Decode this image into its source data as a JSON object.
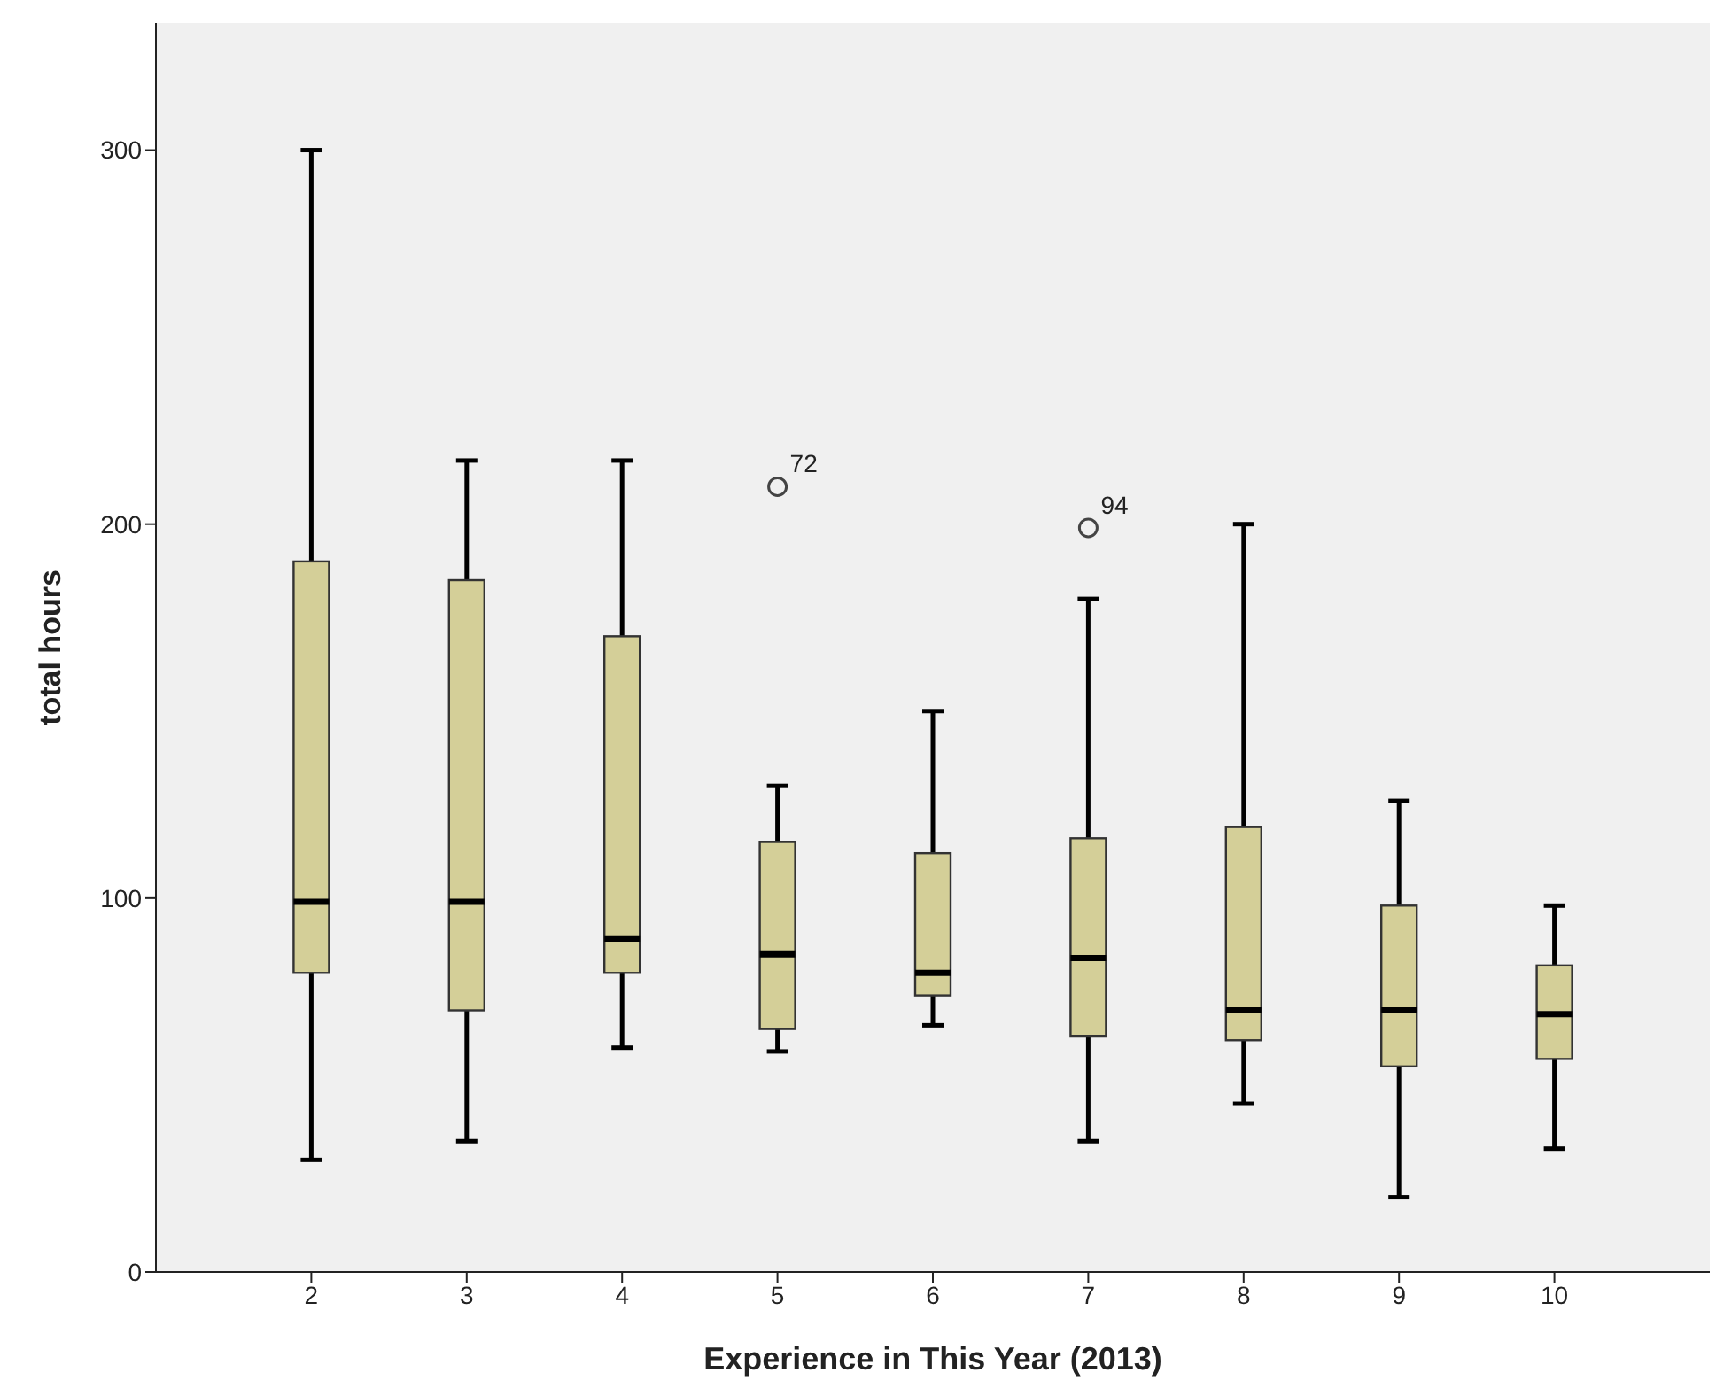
{
  "chart_data": {
    "type": "box",
    "xlabel": "Experience in This Year (2013)",
    "ylabel": "total hours",
    "categories": [
      "2",
      "3",
      "4",
      "5",
      "6",
      "7",
      "8",
      "9",
      "10"
    ],
    "color": "#d4cf98",
    "boxes": [
      {
        "low": 30,
        "q1": 80,
        "median": 99,
        "q3": 190,
        "high": 300
      },
      {
        "low": 35,
        "q1": 70,
        "median": 99,
        "q3": 185,
        "high": 217
      },
      {
        "low": 60,
        "q1": 80,
        "median": 89,
        "q3": 170,
        "high": 217
      },
      {
        "low": 59,
        "q1": 65,
        "median": 85,
        "q3": 115,
        "high": 130,
        "outliers": [
          210
        ]
      },
      {
        "low": 66,
        "q1": 74,
        "median": 80,
        "q3": 112,
        "high": 150
      },
      {
        "low": 35,
        "q1": 63,
        "median": 84,
        "q3": 116,
        "high": 180,
        "outliers": [
          199
        ]
      },
      {
        "low": 45,
        "q1": 62,
        "median": 70,
        "q3": 119,
        "high": 200
      },
      {
        "low": 20,
        "q1": 55,
        "median": 70,
        "q3": 98,
        "high": 126
      },
      {
        "low": 33,
        "q1": 57,
        "median": 69,
        "q3": 82,
        "high": 98
      }
    ],
    "annotations": [
      "72",
      "94"
    ],
    "ylim": [
      0,
      334
    ],
    "yticks": [
      0,
      100,
      200,
      300
    ],
    "grid": false,
    "legend": false
  }
}
